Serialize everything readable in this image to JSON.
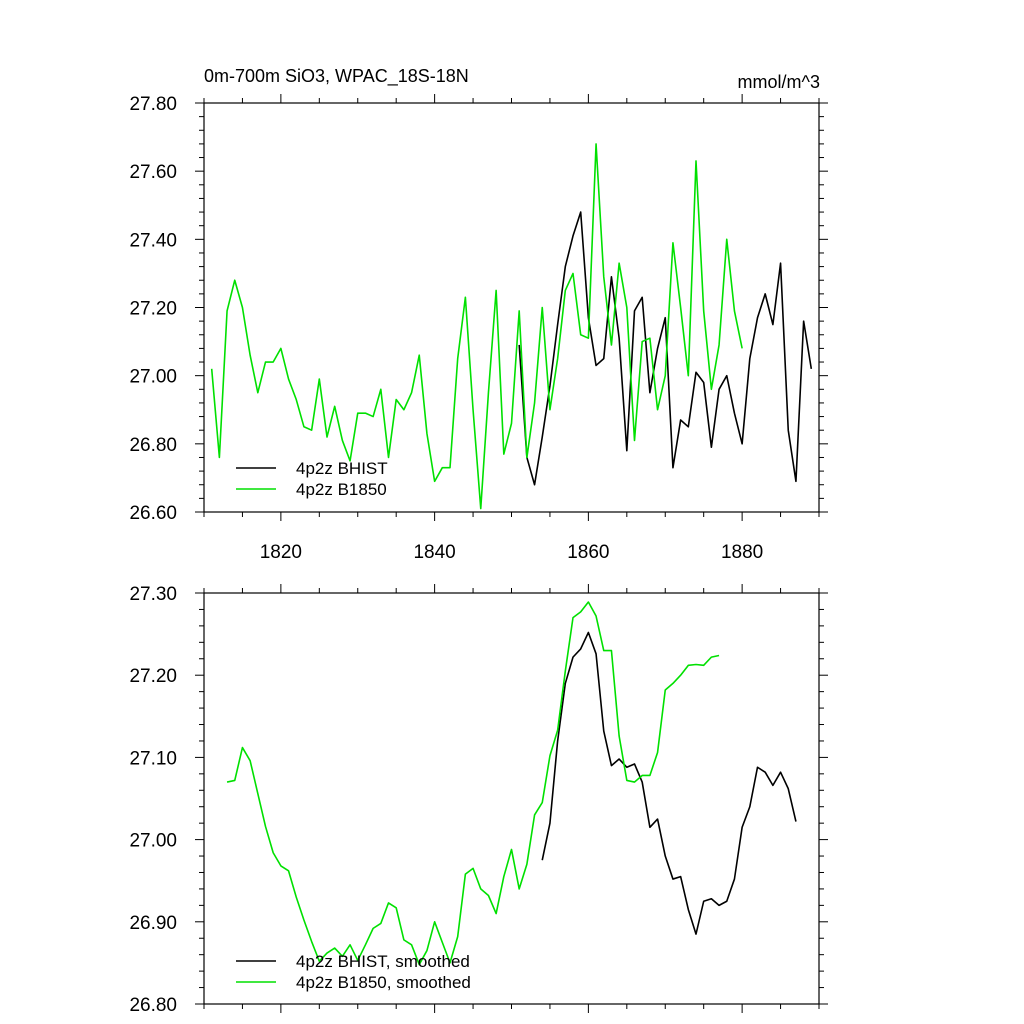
{
  "chart_data": [
    {
      "type": "line",
      "title": "0m-700m SiO3, WPAC_18S-18N",
      "units": "mmol/m^3",
      "xlim": [
        1810,
        1890
      ],
      "ylim": [
        26.6,
        27.8
      ],
      "xticks": [
        1820,
        1840,
        1860,
        1880
      ],
      "xtick_labels": [
        "1820",
        "1840",
        "1860",
        "1880"
      ],
      "yticks": [
        26.6,
        26.8,
        27.0,
        27.2,
        27.4,
        27.6,
        27.8
      ],
      "ytick_labels": [
        "26.60",
        "26.80",
        "27.00",
        "27.20",
        "27.40",
        "27.60",
        "27.80"
      ],
      "legend_position": "bottom-left",
      "series": [
        {
          "name": "4p2z BHIST",
          "color": "#000000",
          "x": [
            1851,
            1852,
            1853,
            1854,
            1855,
            1856,
            1857,
            1858,
            1859,
            1860,
            1861,
            1862,
            1863,
            1864,
            1865,
            1866,
            1867,
            1868,
            1869,
            1870,
            1871,
            1872,
            1873,
            1874,
            1875,
            1876,
            1877,
            1878,
            1879,
            1880,
            1881,
            1882,
            1883,
            1884,
            1885,
            1886,
            1887,
            1888,
            1889
          ],
          "y": [
            27.09,
            26.76,
            26.68,
            26.82,
            26.97,
            27.15,
            27.32,
            27.41,
            27.48,
            27.17,
            27.03,
            27.05,
            27.29,
            27.11,
            26.78,
            27.19,
            27.23,
            26.95,
            27.08,
            27.17,
            26.73,
            26.87,
            26.85,
            27.01,
            26.98,
            26.79,
            26.96,
            27.0,
            26.89,
            26.8,
            27.05,
            27.17,
            27.24,
            27.15,
            27.33,
            26.84,
            26.69,
            27.16,
            27.02
          ]
        },
        {
          "name": "4p2z B1850",
          "color": "#00e000",
          "x": [
            1811,
            1812,
            1813,
            1814,
            1815,
            1816,
            1817,
            1818,
            1819,
            1820,
            1821,
            1822,
            1823,
            1824,
            1825,
            1826,
            1827,
            1828,
            1829,
            1830,
            1831,
            1832,
            1833,
            1834,
            1835,
            1836,
            1837,
            1838,
            1839,
            1840,
            1841,
            1842,
            1843,
            1844,
            1845,
            1846,
            1847,
            1848,
            1849,
            1850,
            1851,
            1852,
            1853,
            1854,
            1855,
            1856,
            1857,
            1858,
            1859,
            1860,
            1861,
            1862,
            1863,
            1864,
            1865,
            1866,
            1867,
            1868,
            1869,
            1870,
            1871,
            1872,
            1873,
            1874,
            1875,
            1876,
            1877,
            1878,
            1879,
            1880
          ],
          "y": [
            27.02,
            26.76,
            27.19,
            27.28,
            27.2,
            27.06,
            26.95,
            27.04,
            27.04,
            27.08,
            26.99,
            26.93,
            26.85,
            26.84,
            26.99,
            26.82,
            26.91,
            26.81,
            26.75,
            26.89,
            26.89,
            26.88,
            26.96,
            26.76,
            26.93,
            26.9,
            26.95,
            27.06,
            26.83,
            26.69,
            26.73,
            26.73,
            27.05,
            27.23,
            26.9,
            26.61,
            26.95,
            27.25,
            26.77,
            26.86,
            27.19,
            26.76,
            26.92,
            27.2,
            26.9,
            27.05,
            27.25,
            27.3,
            27.12,
            27.11,
            27.68,
            27.29,
            27.09,
            27.33,
            27.2,
            26.81,
            27.1,
            27.11,
            26.9,
            27.0,
            27.39,
            27.2,
            27.0,
            27.63,
            27.19,
            26.96,
            27.09,
            27.4,
            27.19,
            27.08
          ]
        }
      ]
    },
    {
      "type": "line",
      "title": "",
      "xlim": [
        1810,
        1890
      ],
      "ylim": [
        26.8,
        27.3
      ],
      "xticks": [
        1820,
        1840,
        1860,
        1880
      ],
      "yticks": [
        26.8,
        26.9,
        27.0,
        27.1,
        27.2,
        27.3
      ],
      "ytick_labels": [
        "26.80",
        "26.90",
        "27.00",
        "27.10",
        "27.20",
        "27.30"
      ],
      "legend_position": "bottom-left",
      "series": [
        {
          "name": "4p2z BHIST, smoothed",
          "color": "#000000",
          "x": [
            1854,
            1855,
            1856,
            1857,
            1858,
            1859,
            1860,
            1861,
            1862,
            1863,
            1864,
            1865,
            1866,
            1867,
            1868,
            1869,
            1870,
            1871,
            1872,
            1873,
            1874,
            1875,
            1876,
            1877,
            1878,
            1879,
            1880,
            1881,
            1882,
            1883,
            1884,
            1885,
            1886,
            1887
          ],
          "y": [
            26.975,
            27.02,
            27.12,
            27.19,
            27.222,
            27.232,
            27.252,
            27.226,
            27.132,
            27.09,
            27.098,
            27.088,
            27.092,
            27.07,
            27.015,
            27.025,
            26.98,
            26.952,
            26.955,
            26.915,
            26.885,
            26.925,
            26.928,
            26.92,
            26.925,
            26.952,
            27.015,
            27.04,
            27.088,
            27.082,
            27.066,
            27.082,
            27.062,
            27.022
          ]
        },
        {
          "name": "4p2z B1850, smoothed",
          "color": "#00e000",
          "x": [
            1813,
            1814,
            1815,
            1816,
            1817,
            1818,
            1819,
            1820,
            1821,
            1822,
            1823,
            1824,
            1825,
            1826,
            1827,
            1828,
            1829,
            1830,
            1831,
            1832,
            1833,
            1834,
            1835,
            1836,
            1837,
            1838,
            1839,
            1840,
            1841,
            1842,
            1843,
            1844,
            1845,
            1846,
            1847,
            1848,
            1849,
            1850,
            1851,
            1852,
            1853,
            1854,
            1855,
            1856,
            1857,
            1858,
            1859,
            1860,
            1861,
            1862,
            1863,
            1864,
            1865,
            1866,
            1867,
            1868,
            1869,
            1870,
            1871,
            1872,
            1873,
            1874,
            1875,
            1876,
            1877
          ],
          "y": [
            27.07,
            27.072,
            27.112,
            27.096,
            27.056,
            27.016,
            26.984,
            26.968,
            26.962,
            26.93,
            26.902,
            26.876,
            26.852,
            26.862,
            26.868,
            26.858,
            26.872,
            26.853,
            26.872,
            26.892,
            26.898,
            26.923,
            26.917,
            26.878,
            26.872,
            26.848,
            26.865,
            26.9,
            26.875,
            26.85,
            26.882,
            26.958,
            26.965,
            26.94,
            26.932,
            26.91,
            26.955,
            26.988,
            26.94,
            26.97,
            27.03,
            27.045,
            27.102,
            27.133,
            27.205,
            27.27,
            27.277,
            27.289,
            27.272,
            27.23,
            27.23,
            27.126,
            27.072,
            27.07,
            27.078,
            27.078,
            27.106,
            27.182,
            27.19,
            27.2,
            27.212,
            27.213,
            27.212,
            27.222,
            27.224
          ]
        }
      ]
    }
  ]
}
